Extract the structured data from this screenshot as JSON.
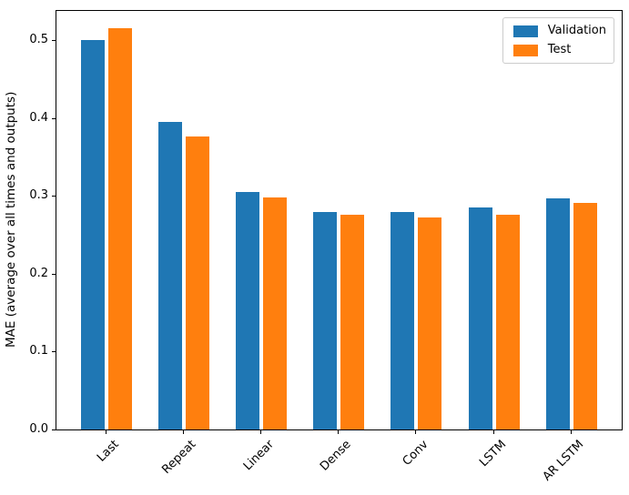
{
  "figure": {
    "kind": "matplotlib-bar-figure"
  },
  "legend": {
    "position": "upper right",
    "items": [
      {
        "label": "Validation",
        "color": "#1f77b4"
      },
      {
        "label": "Test",
        "color": "#ff7f0e"
      }
    ]
  },
  "chart_data": {
    "type": "bar",
    "title": "",
    "xlabel": "",
    "ylabel": "MAE (average over all times and outputs)",
    "categories": [
      "Last",
      "Repeat",
      "Linear",
      "Dense",
      "Conv",
      "LSTM",
      "AR LSTM"
    ],
    "series": [
      {
        "name": "Validation",
        "color": "#1f77b4",
        "values": [
          0.501,
          0.395,
          0.305,
          0.28,
          0.279,
          0.285,
          0.297
        ]
      },
      {
        "name": "Test",
        "color": "#ff7f0e",
        "values": [
          0.516,
          0.377,
          0.298,
          0.276,
          0.273,
          0.276,
          0.291
        ]
      }
    ],
    "ylim": [
      0,
      0.539
    ],
    "yticks": [
      0.0,
      0.1,
      0.2,
      0.3,
      0.4,
      0.5
    ],
    "ytick_labels": [
      "0.0",
      "0.1",
      "0.2",
      "0.3",
      "0.4",
      "0.5"
    ],
    "xtick_rotation": 45,
    "grid": false,
    "legend_position": "upper right"
  }
}
